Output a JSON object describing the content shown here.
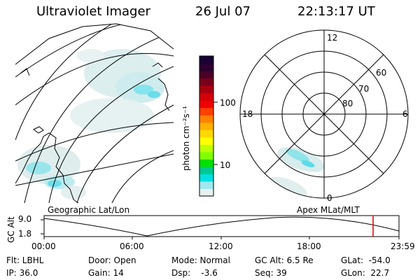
{
  "header": {
    "title": "Ultraviolet Imager",
    "date": "26 Jul 07",
    "time": "22:13:17 UT"
  },
  "colorbar": {
    "unit_label": "photon cm⁻²s⁻¹",
    "ticks": [
      "100",
      "10"
    ],
    "colors": [
      "#1a0033",
      "#2a0030",
      "#4a0028",
      "#7a001a",
      "#a80010",
      "#d40008",
      "#f00000",
      "#ff4000",
      "#ff8000",
      "#ffb000",
      "#ffd800",
      "#ffff00",
      "#c0ff00",
      "#80ff00",
      "#00e000",
      "#00c890",
      "#00e0e0",
      "#a0e8f0",
      "#e8f0f0"
    ]
  },
  "polar": {
    "labels": {
      "top": "12",
      "bottom": "0",
      "left": "18",
      "right": "6"
    },
    "rings": [
      "60",
      "70",
      "80"
    ]
  },
  "timeline": {
    "left_label": "Geographic Lat/Lon",
    "right_label": "Apex MLat/MLT",
    "axis_title": "GC Alt",
    "y_ticks": [
      "9.0",
      "1.8"
    ],
    "x_ticks": [
      "00:00",
      "06:00",
      "12:00",
      "18:00",
      "23:59"
    ],
    "marker_color": "#e00000"
  },
  "info": {
    "flt": "Flt: LBHL",
    "ip": "IP: 36.0",
    "door": "Door: Open",
    "gain": "Gain: 14",
    "mode": "Mode: Normal",
    "dsp": "Dsp:    -3.6",
    "gcalt": "GC Alt: 6.5 Re",
    "seq": "Seq: 39",
    "glat": "GLat:  -54.0",
    "glon": "GLon:  22.7"
  }
}
